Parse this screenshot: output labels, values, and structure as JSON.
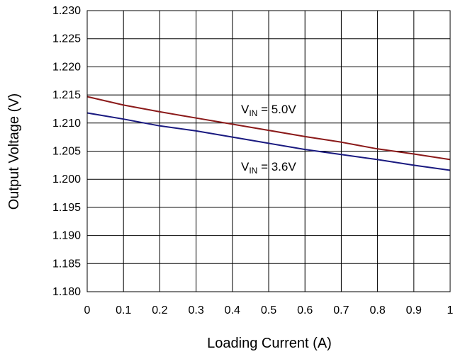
{
  "chart_data": {
    "type": "line",
    "title": "",
    "xlabel": "Loading Current (A)",
    "ylabel": "Output Voltage (V)",
    "xlim": [
      0,
      1
    ],
    "ylim": [
      1.18,
      1.23
    ],
    "grid": true,
    "x_ticks": [
      "0",
      "0.1",
      "0.2",
      "0.3",
      "0.4",
      "0.5",
      "0.6",
      "0.7",
      "0.8",
      "0.9",
      "1"
    ],
    "y_ticks": [
      "1.180",
      "1.185",
      "1.190",
      "1.195",
      "1.200",
      "1.205",
      "1.210",
      "1.215",
      "1.220",
      "1.225",
      "1.230"
    ],
    "x": [
      0,
      0.1,
      0.2,
      0.3,
      0.4,
      0.5,
      0.6,
      0.7,
      0.8,
      0.9,
      1.0
    ],
    "series": [
      {
        "color": "#8B1A1A",
        "values": [
          1.2147,
          1.2132,
          1.212,
          1.2109,
          1.2098,
          1.2087,
          1.2076,
          1.2066,
          1.2054,
          1.2045,
          1.2035
        ]
      },
      {
        "color": "#1A1A80",
        "values": [
          1.2118,
          1.2107,
          1.2095,
          1.2086,
          1.2075,
          1.2064,
          1.2053,
          1.2044,
          1.2035,
          1.2025,
          1.2016
        ]
      }
    ],
    "annotations": [
      {
        "main": "V",
        "sub": "IN",
        "rest": " = 5.0V"
      },
      {
        "main": "V",
        "sub": "IN",
        "rest": " = 3.6V"
      }
    ]
  }
}
